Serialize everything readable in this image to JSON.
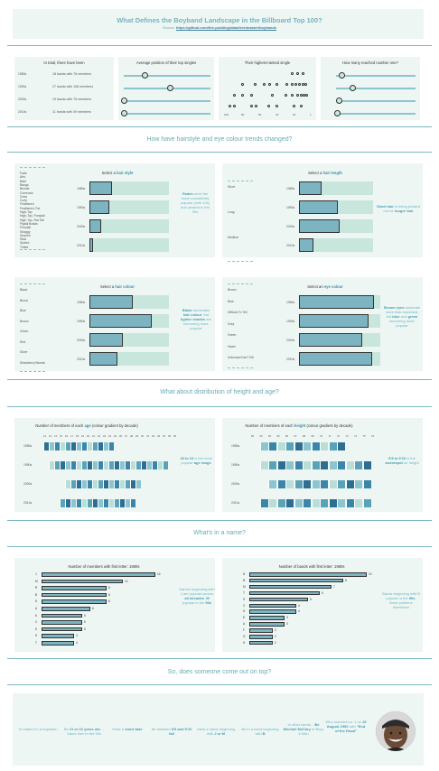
{
  "header": {
    "title": "What Defines the Boyband Landscape in the Billboard Top 100?",
    "source_label": "Source:",
    "source_link": "https://github.com/the-pudding/data/tree/master/boybands"
  },
  "overview": {
    "panel1_title": "In total, there have been",
    "panel1_rows": [
      {
        "decade": "1980s",
        "text": "18 bands with 76 members"
      },
      {
        "decade": "1990s",
        "text": "27 bands with 108 members"
      },
      {
        "decade": "2000s",
        "text": "19 bands with 78 members"
      },
      {
        "decade": "2010s",
        "text": "11 bands with 49 members"
      }
    ],
    "panel2_title": "Average position of their top singles",
    "panel2_values": [
      24,
      53,
      0,
      0
    ],
    "panel3_title": "Their highest-ranked single",
    "panel3_axis": [
      "100",
      "80",
      "60",
      "40",
      "20",
      "1"
    ],
    "panel4_title": "How many reached number one?",
    "panel4_values": [
      0.08,
      0.22,
      0.05,
      0.02
    ]
  },
  "sections": {
    "hair_eye": "How have hairstyle and eye colour trends changed?",
    "height_age": "What about distribution of height and age?",
    "name": "What's in a name?",
    "come_out": "So, does someone come out on top?"
  },
  "hair_style": {
    "select_prefix": "Select a",
    "select_word": "hair style",
    "options": [
      "Fade",
      "Afro",
      "Bald",
      "Bangs",
      "Blonde",
      "Cornrows",
      "Crew",
      "Curly",
      "Feathered",
      "Feathered, Fat",
      "High-Top",
      "High-Top, Ponytail",
      "High-Top, Rat Tail",
      "Pigtail Braids",
      "Ponytail",
      "Shaggy",
      "Shaved",
      "Slick",
      "Spiked",
      "Tinted"
    ],
    "decades": [
      "1980s",
      "1990s",
      "2000s",
      "2010s"
    ],
    "values": [
      0.28,
      0.25,
      0.15,
      0.04
    ],
    "insight_pre": "Fades",
    "insight": "were the most consistently popular (until 10s) and peaked in the 90s"
  },
  "hair_length": {
    "select_prefix": "Select a",
    "select_word": "hair length",
    "options": [
      "Short",
      "Long",
      "Medium"
    ],
    "decades": [
      "1980s",
      "1990s",
      "2000s",
      "2010s"
    ],
    "values": [
      0.3,
      0.52,
      0.55,
      0.2
    ],
    "insight_pre": "Short hair",
    "insight_mid": "is being phased out for",
    "insight_post": "longer hair"
  },
  "hair_colour": {
    "select_prefix": "Select a",
    "select_word": "hair colour",
    "options": [
      "Black",
      "Blond",
      "Blue",
      "Brown",
      "Green",
      "Red",
      "Silver",
      "Strawberry Blonde"
    ],
    "decades": [
      "1980s",
      "1990s",
      "2000s",
      "2010s"
    ],
    "values": [
      0.55,
      0.78,
      0.42,
      0.35
    ],
    "insight_pre": "Black",
    "insight_mid": "dominates",
    "insight_bold2": "hair colour",
    "insight_mid2": ", but",
    "insight_bold3": "lighter shades",
    "insight_post": "are becoming more popular"
  },
  "eye_colour": {
    "select_prefix": "Select an",
    "select_word": "eye colour",
    "options": [
      "Brown",
      "Blue",
      "Difficult To Tell",
      "Grey",
      "Green",
      "Hazel",
      "Unknown/Can't Tell"
    ],
    "decades": [
      "1980s",
      "1990s",
      "2000s",
      "2010s"
    ],
    "values": [
      0.92,
      0.85,
      0.78,
      0.9
    ],
    "insight_pre": "Brown eyes",
    "insight_mid": "dominate more than expected, but",
    "insight_bold2": "blue",
    "insight_mid2": "and",
    "insight_bold3": "green",
    "insight_post": "becoming more popular"
  },
  "age_chart": {
    "title_pre": "Number of members of each",
    "title_word": "age",
    "title_post": "(colour gradient by decade)",
    "columns": [
      "12",
      "13",
      "14",
      "15",
      "16",
      "17",
      "18",
      "19",
      "20",
      "21",
      "22",
      "23",
      "24",
      "25",
      "26",
      "27",
      "28",
      "29",
      "30",
      "31",
      "32",
      "33",
      "34",
      "35",
      "36"
    ],
    "decades": [
      "1980s",
      "1990s",
      "2000s",
      "2010s"
    ],
    "insight_bold": "18 to 24",
    "insight_mid": "is the most popular",
    "insight_bold2": "age range"
  },
  "height_chart": {
    "title_pre": "Number of members of each",
    "title_word": "height",
    "title_post": "(colour gradient by decade)",
    "columns": [
      "60",
      "63",
      "64",
      "65",
      "66",
      "67",
      "68",
      "69",
      "70",
      "71",
      "72",
      "73",
      "74",
      "75",
      "76"
    ],
    "decades": [
      "1980s",
      "1990s",
      "2000s",
      "2010s"
    ],
    "insight_bold": "5'8 to 5'10",
    "insight_mid": "is the",
    "insight_bold2": "sweetspot",
    "insight_post": "for height"
  },
  "member_letters": {
    "title": "Number of members with first letter: 1980s",
    "letters": [
      "J",
      "M",
      "R",
      "B",
      "D",
      "A",
      "K",
      "C",
      "E",
      "S",
      "T"
    ],
    "values": [
      14,
      10,
      8,
      8,
      8,
      6,
      5,
      5,
      5,
      4,
      4
    ],
    "insight": "Names beginning with J are popular across",
    "insight_bold": "all decades",
    "insight_mid": ",",
    "insight_bold2": "M",
    "insight_post": "popular in the",
    "insight_bold3": "90s"
  },
  "band_letters": {
    "title": "Number of bands with first letter: 1980s",
    "letters": [
      "N",
      "B",
      "M",
      "T",
      "S",
      "C",
      "D",
      "E",
      "A",
      "F",
      "G",
      "H"
    ],
    "values": [
      10,
      8,
      7,
      6,
      5,
      4,
      4,
      3,
      3,
      2,
      2,
      2
    ],
    "insight": "Bands beginning with B popular in the",
    "insight_bold": "90s",
    "insight_post": ", fewer patterns elsewhere"
  },
  "footer": {
    "items": [
      {
        "pre": "To make it in a boyband..."
      },
      {
        "pre": "Be",
        "bold": "21 or 22 years old",
        "post": "... Same then in the 90s"
      },
      {
        "pre": "Have a",
        "bold": "short fade"
      },
      {
        "pre": "Be between",
        "bold": "5'8 and 5'10 tall"
      },
      {
        "pre": "Have a name beginning with",
        "bold": "J or M"
      },
      {
        "pre": "Be in a band beginning with",
        "bold": "B"
      },
      {
        "pre": "In other words...",
        "bold": "Be Michael McCary",
        "post": "of Boyz II Men"
      },
      {
        "pre": "Who reached no. 1 on",
        "bold": "15 August 1992",
        "post": "with",
        "bold2": "\"End of the Road\""
      }
    ]
  },
  "colors": {
    "accent": "#79b3bd",
    "panel_bg": "#eef6f4",
    "bar_fill": "#7cb4c2",
    "track": "#c8e6dc"
  }
}
